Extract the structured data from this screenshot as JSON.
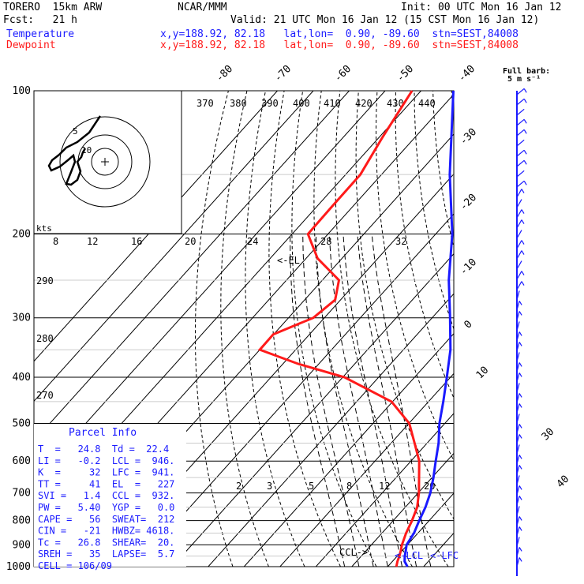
{
  "header": {
    "model": "TORERO  15km ARW",
    "source": "NCAR/MMM",
    "init": "Init: 00 UTC Mon 16 Jan 12",
    "fcst": "Fcst:   21 h",
    "valid": "Valid: 21 UTC Mon 16 Jan 12 (15 CST Mon 16 Jan 12)",
    "temp_label": "Temperature",
    "temp_loc": "x,y=188.92, 82.18   lat,lon=  0.90, -89.60  stn=SEST,84008",
    "dew_label": "Dewpoint",
    "dew_loc": "x,y=188.92, 82.18   lat,lon=  0.90, -89.60  stn=SEST,84008"
  },
  "wind_legend": {
    "line1": "Full barb:",
    "line2": "5 m s⁻¹"
  },
  "hodograph": {
    "units": "kts",
    "ring_labels": [
      "5",
      "10"
    ]
  },
  "parcel_info": {
    "title": "Parcel Info",
    "rows": [
      "T  =   24.8  Td =  22.4",
      "LI =   -0.2  LCL =  946.",
      "K  =     32  LFC =  941.",
      "TT =     41  EL  =   227",
      "SVI =   1.4  CCL =  932.",
      "PW =   5.40  YGP =   0.0",
      "CAPE =   56  SWEAT=  212",
      "CIN =   -21  HWBZ= 4618.",
      "Tc =   26.8  SHEAR=  20.",
      "SREH =   35  LAPSE=  5.7",
      "CELL = 106/09"
    ]
  },
  "annotations": {
    "el": "<-EL",
    "ccl": "CCL->",
    "lcl": "<-LCL",
    "lfc": "<-LFC"
  },
  "colors": {
    "temperature": "#1a1aff",
    "dewpoint": "#ff1a1a",
    "barbs": "#1a1aff"
  },
  "chart_data": {
    "type": "line",
    "title": "",
    "xlabel": "",
    "ylabel": "",
    "y_scale": "log-pressure",
    "ylim": [
      1000,
      100
    ],
    "grid": true,
    "pressure_ticks": [
      "100",
      "200",
      "300",
      "400",
      "500",
      "600",
      "700",
      "800",
      "900",
      "1000"
    ],
    "isotherm_labels": [
      "-80",
      "-70",
      "-60",
      "-50",
      "-40",
      "-30",
      "-20",
      "-10",
      "0",
      "10",
      "30",
      "40"
    ],
    "dry_adiabat_labels": [
      "370",
      "380",
      "390",
      "400",
      "410",
      "420",
      "430",
      "440",
      "290",
      "280",
      "270"
    ],
    "moist_adiabat_labels": [
      "8",
      "12",
      "16",
      "20",
      "24",
      "28",
      "32"
    ],
    "mixing_ratio_labels": [
      "2",
      "3",
      "5",
      "8",
      "12",
      "20"
    ],
    "series": [
      {
        "name": "Temperature",
        "pressure": [
          1000,
          975,
          950,
          925,
          900,
          850,
          800,
          750,
          700,
          650,
          600,
          550,
          500,
          450,
          400,
          350,
          300,
          250,
          200,
          150,
          100
        ],
        "values": [
          25.5,
          23.4,
          22.1,
          21.0,
          19.8,
          18.9,
          17.2,
          15.6,
          13.4,
          10.4,
          6.9,
          3.2,
          -1.5,
          -5.9,
          -11.0,
          -16.9,
          -25.0,
          -34.8,
          -45.4,
          -61.0,
          -81.0
        ]
      },
      {
        "name": "Dewpoint",
        "pressure": [
          1000,
          975,
          950,
          925,
          900,
          850,
          800,
          750,
          700,
          650,
          600,
          550,
          500,
          450,
          400,
          375,
          350,
          325,
          300,
          275,
          250,
          225,
          200,
          175,
          150,
          125,
          100
        ],
        "values": [
          22.4,
          21.4,
          20.6,
          19.6,
          18.5,
          16.7,
          15.2,
          13.3,
          10.2,
          6.4,
          2.3,
          -3.5,
          -9.9,
          -20.3,
          -39.5,
          -55.7,
          -70.0,
          -70.1,
          -63.1,
          -61.5,
          -65.4,
          -76.8,
          -85.6,
          -85.8,
          -85.9,
          -89.1,
          -92.5
        ]
      }
    ]
  }
}
